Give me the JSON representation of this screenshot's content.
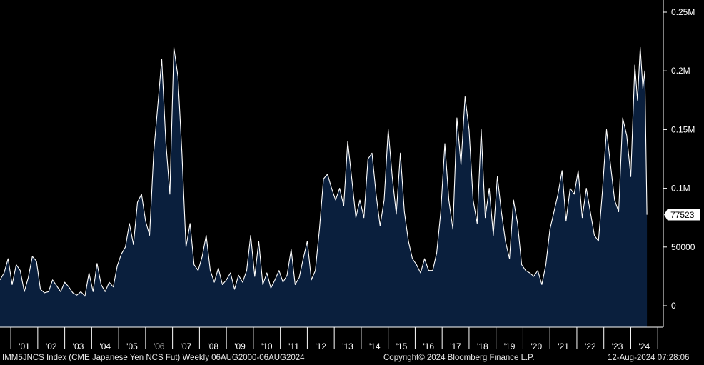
{
  "chart_data": {
    "type": "area",
    "title": "",
    "xlabel": "",
    "ylabel": "",
    "ylim": [
      -20000,
      255000
    ],
    "y_ticks": [
      {
        "value": 250000,
        "label": "0.25M"
      },
      {
        "value": 200000,
        "label": "0.2M"
      },
      {
        "value": 150000,
        "label": "0.15M"
      },
      {
        "value": 100000,
        "label": "0.1M"
      },
      {
        "value": 50000,
        "label": "50000"
      },
      {
        "value": 0,
        "label": "0"
      }
    ],
    "x_range": [
      2000.6,
      2024.65
    ],
    "x_tick_labels": [
      {
        "year": 2001,
        "label": "'01"
      },
      {
        "year": 2002,
        "label": "'02"
      },
      {
        "year": 2003,
        "label": "'03"
      },
      {
        "year": 2004,
        "label": "'04"
      },
      {
        "year": 2005,
        "label": "'05"
      },
      {
        "year": 2006,
        "label": "'06"
      },
      {
        "year": 2007,
        "label": "'07"
      },
      {
        "year": 2008,
        "label": "'08"
      },
      {
        "year": 2009,
        "label": "'09"
      },
      {
        "year": 2010,
        "label": "'10"
      },
      {
        "year": 2011,
        "label": "'11"
      },
      {
        "year": 2012,
        "label": "'12"
      },
      {
        "year": 2013,
        "label": "'13"
      },
      {
        "year": 2014,
        "label": "'14"
      },
      {
        "year": 2015,
        "label": "'15"
      },
      {
        "year": 2016,
        "label": "'16"
      },
      {
        "year": 2017,
        "label": "'17"
      },
      {
        "year": 2018,
        "label": "'18"
      },
      {
        "year": 2019,
        "label": "'19"
      },
      {
        "year": 2020,
        "label": "'20"
      },
      {
        "year": 2021,
        "label": "'21"
      },
      {
        "year": 2022,
        "label": "'22"
      },
      {
        "year": 2023,
        "label": "'23"
      },
      {
        "year": 2024,
        "label": "'24"
      }
    ],
    "series": [
      {
        "name": "IMM5JNCS Index",
        "last_value": 77523,
        "last_value_label": "77523",
        "x": [
          2000.6,
          2000.75,
          2000.9,
          2001.05,
          2001.2,
          2001.35,
          2001.5,
          2001.65,
          2001.8,
          2001.95,
          2002.1,
          2002.25,
          2002.4,
          2002.55,
          2002.7,
          2002.85,
          2003.0,
          2003.15,
          2003.3,
          2003.45,
          2003.6,
          2003.75,
          2003.9,
          2004.05,
          2004.2,
          2004.35,
          2004.5,
          2004.65,
          2004.8,
          2004.95,
          2005.1,
          2005.25,
          2005.4,
          2005.55,
          2005.7,
          2005.85,
          2006.0,
          2006.15,
          2006.3,
          2006.45,
          2006.6,
          2006.75,
          2006.9,
          2007.05,
          2007.2,
          2007.35,
          2007.5,
          2007.65,
          2007.8,
          2007.95,
          2008.1,
          2008.25,
          2008.4,
          2008.55,
          2008.7,
          2008.85,
          2009.0,
          2009.15,
          2009.3,
          2009.45,
          2009.6,
          2009.75,
          2009.9,
          2010.05,
          2010.2,
          2010.35,
          2010.5,
          2010.65,
          2010.8,
          2010.95,
          2011.1,
          2011.25,
          2011.4,
          2011.55,
          2011.7,
          2011.85,
          2012.0,
          2012.15,
          2012.3,
          2012.45,
          2012.6,
          2012.75,
          2012.9,
          2013.05,
          2013.2,
          2013.35,
          2013.5,
          2013.65,
          2013.8,
          2013.95,
          2014.1,
          2014.25,
          2014.4,
          2014.55,
          2014.7,
          2014.85,
          2015.0,
          2015.15,
          2015.3,
          2015.45,
          2015.6,
          2015.75,
          2015.9,
          2016.05,
          2016.2,
          2016.35,
          2016.5,
          2016.65,
          2016.8,
          2016.95,
          2017.1,
          2017.25,
          2017.4,
          2017.55,
          2017.7,
          2017.85,
          2018.0,
          2018.15,
          2018.3,
          2018.45,
          2018.6,
          2018.75,
          2018.9,
          2019.05,
          2019.2,
          2019.35,
          2019.5,
          2019.65,
          2019.8,
          2019.95,
          2020.1,
          2020.25,
          2020.4,
          2020.55,
          2020.7,
          2020.85,
          2021.0,
          2021.15,
          2021.3,
          2021.45,
          2021.6,
          2021.75,
          2021.9,
          2022.05,
          2022.2,
          2022.35,
          2022.5,
          2022.65,
          2022.8,
          2022.95,
          2023.1,
          2023.25,
          2023.4,
          2023.55,
          2023.7,
          2023.85,
          2024.0,
          2024.15,
          2024.25,
          2024.35,
          2024.45,
          2024.52,
          2024.6
        ],
        "values": [
          22000,
          28000,
          40000,
          18000,
          35000,
          30000,
          12000,
          24000,
          42000,
          38000,
          14000,
          11000,
          12000,
          22000,
          17000,
          12000,
          20000,
          16000,
          11000,
          9000,
          12000,
          8000,
          28000,
          12000,
          36000,
          18000,
          12000,
          20000,
          16000,
          34000,
          44000,
          50000,
          70000,
          52000,
          88000,
          95000,
          72000,
          60000,
          130000,
          170000,
          210000,
          140000,
          95000,
          220000,
          195000,
          130000,
          50000,
          70000,
          35000,
          30000,
          42000,
          60000,
          30000,
          20000,
          32000,
          18000,
          22000,
          28000,
          14000,
          26000,
          20000,
          30000,
          60000,
          25000,
          55000,
          18000,
          28000,
          15000,
          22000,
          30000,
          20000,
          26000,
          48000,
          18000,
          24000,
          40000,
          55000,
          22000,
          30000,
          65000,
          108000,
          112000,
          100000,
          90000,
          100000,
          85000,
          140000,
          108000,
          75000,
          90000,
          75000,
          125000,
          130000,
          95000,
          68000,
          90000,
          150000,
          110000,
          78000,
          130000,
          80000,
          55000,
          40000,
          35000,
          28000,
          40000,
          30000,
          30000,
          45000,
          80000,
          138000,
          90000,
          65000,
          160000,
          120000,
          178000,
          150000,
          90000,
          70000,
          150000,
          75000,
          100000,
          60000,
          110000,
          80000,
          55000,
          40000,
          90000,
          70000,
          35000,
          30000,
          28000,
          25000,
          30000,
          18000,
          35000,
          65000,
          80000,
          95000,
          115000,
          72000,
          100000,
          95000,
          115000,
          75000,
          100000,
          80000,
          60000,
          55000,
          98000,
          150000,
          120000,
          90000,
          80000,
          160000,
          145000,
          110000,
          205000,
          175000,
          220000,
          185000,
          200000,
          77523
        ]
      }
    ]
  },
  "footer": {
    "left": "IMM5JNCS Index (CME Japanese Yen NCS Fut)  Weekly 06AUG2000-06AUG2024",
    "center": "Copyright© 2024 Bloomberg Finance L.P.",
    "right": "12-Aug-2024 07:28:06"
  },
  "colors": {
    "background": "#000000",
    "area_fill": "#0a1f3d",
    "line": "#ffffff",
    "axis": "#ffffff"
  }
}
